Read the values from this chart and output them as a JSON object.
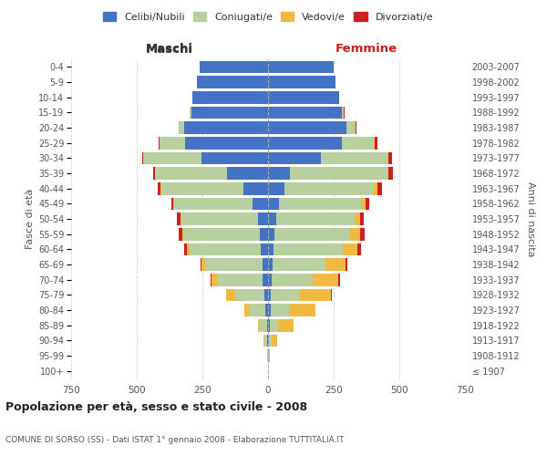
{
  "age_groups": [
    "100+",
    "95-99",
    "90-94",
    "85-89",
    "80-84",
    "75-79",
    "70-74",
    "65-69",
    "60-64",
    "55-59",
    "50-54",
    "45-49",
    "40-44",
    "35-39",
    "30-34",
    "25-29",
    "20-24",
    "15-19",
    "10-14",
    "5-9",
    "0-4"
  ],
  "birth_years": [
    "≤ 1907",
    "1908-1912",
    "1913-1917",
    "1918-1922",
    "1923-1927",
    "1928-1932",
    "1933-1937",
    "1938-1942",
    "1943-1947",
    "1948-1952",
    "1953-1957",
    "1958-1962",
    "1963-1967",
    "1968-1972",
    "1973-1977",
    "1978-1982",
    "1983-1987",
    "1988-1992",
    "1993-1997",
    "1998-2002",
    "2003-2007"
  ],
  "males": {
    "celibi": [
      0,
      1,
      3,
      5,
      12,
      14,
      22,
      20,
      28,
      32,
      38,
      58,
      95,
      155,
      255,
      315,
      318,
      292,
      288,
      272,
      262
    ],
    "coniugati": [
      0,
      2,
      10,
      28,
      58,
      112,
      168,
      218,
      272,
      288,
      292,
      298,
      312,
      272,
      218,
      98,
      22,
      6,
      0,
      0,
      0
    ],
    "vedovi": [
      0,
      1,
      3,
      6,
      22,
      32,
      26,
      16,
      9,
      6,
      5,
      4,
      3,
      2,
      1,
      1,
      0,
      0,
      0,
      0,
      0
    ],
    "divorziati": [
      0,
      0,
      0,
      0,
      0,
      0,
      2,
      4,
      9,
      13,
      11,
      9,
      11,
      9,
      6,
      4,
      2,
      0,
      0,
      0,
      0
    ]
  },
  "females": {
    "nubili": [
      0,
      1,
      3,
      6,
      9,
      11,
      13,
      16,
      22,
      26,
      32,
      42,
      62,
      82,
      202,
      282,
      298,
      282,
      272,
      258,
      250
    ],
    "coniugate": [
      0,
      3,
      12,
      32,
      72,
      112,
      158,
      202,
      262,
      288,
      298,
      312,
      342,
      372,
      252,
      122,
      32,
      6,
      0,
      0,
      0
    ],
    "vedove": [
      0,
      3,
      18,
      58,
      98,
      118,
      98,
      78,
      58,
      38,
      22,
      16,
      11,
      6,
      6,
      3,
      2,
      0,
      0,
      0,
      0
    ],
    "divorziate": [
      0,
      0,
      0,
      0,
      2,
      3,
      6,
      6,
      11,
      16,
      13,
      16,
      19,
      16,
      13,
      9,
      4,
      2,
      0,
      0,
      0
    ]
  },
  "colors": {
    "celibi_nubili": "#4472c4",
    "coniugati": "#b8cfa0",
    "vedovi": "#f0b942",
    "divorziati": "#cc2020"
  },
  "title": "Popolazione per età, sesso e stato civile - 2008",
  "subtitle": "COMUNE DI SORSO (SS) - Dati ISTAT 1° gennaio 2008 - Elaborazione TUTTITALIA.IT",
  "xlabel_maschi": "Maschi",
  "xlabel_femmine": "Femmine",
  "ylabel_left": "Fasce di età",
  "ylabel_right": "Anni di nascita",
  "xlim": 750,
  "legend_labels": [
    "Celibi/Nubili",
    "Coniugati/e",
    "Vedovi/e",
    "Divorziati/e"
  ],
  "background_color": "#ffffff",
  "grid_color": "#cccccc"
}
